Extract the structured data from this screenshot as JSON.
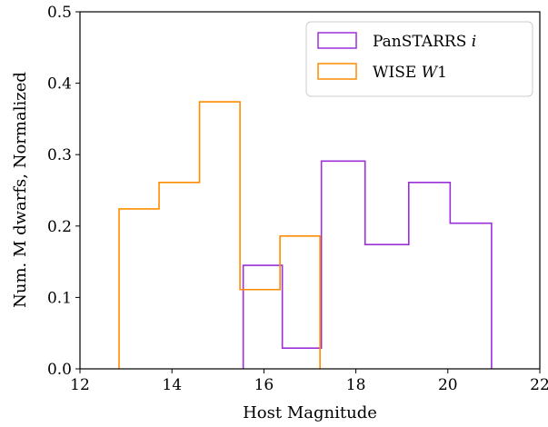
{
  "chart_data": {
    "type": "histogram-step",
    "xlabel": "Host Magnitude",
    "ylabel": "Num. M dwarfs, Normalized",
    "xlim": [
      12,
      22
    ],
    "ylim": [
      0,
      0.5
    ],
    "xticks": [
      12,
      14,
      16,
      18,
      20,
      22
    ],
    "xtick_labels": [
      "12",
      "14",
      "16",
      "18",
      "20",
      "22"
    ],
    "yticks": [
      0,
      0.1,
      0.2,
      0.3,
      0.4,
      0.5
    ],
    "ytick_labels": [
      "0.0",
      "0.1",
      "0.2",
      "0.3",
      "0.4",
      "0.5"
    ],
    "grid": false,
    "legend": {
      "placement": "top-right"
    },
    "series": [
      {
        "name": "PanSTARRS i",
        "name_main": "PanSTARRS",
        "name_italic": "i",
        "color": "#9b30d9",
        "bin_edges": [
          15.55,
          16.4,
          17.25,
          18.2,
          19.15,
          20.05,
          20.95
        ],
        "values": [
          0.145,
          0.029,
          0.291,
          0.174,
          0.261,
          0.204
        ]
      },
      {
        "name": "WISE W1",
        "name_main": "WISE",
        "name_italic": "W",
        "name_tail": "1",
        "color": "#ff8c00",
        "bin_edges": [
          12.85,
          13.72,
          14.6,
          15.48,
          16.35,
          17.22
        ],
        "values": [
          0.224,
          0.261,
          0.374,
          0.111,
          0.186
        ]
      }
    ]
  }
}
